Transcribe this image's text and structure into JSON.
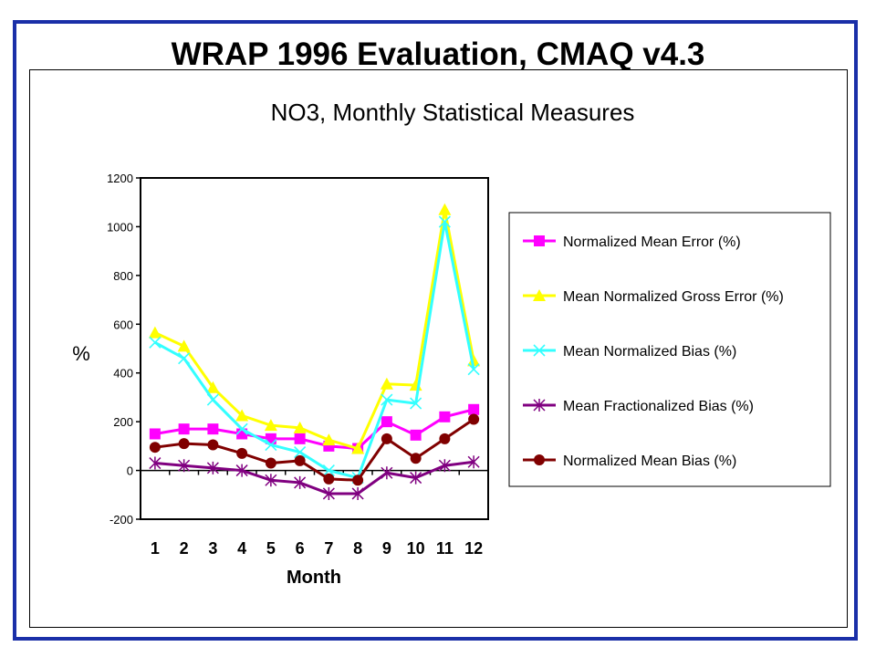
{
  "slide": {
    "title": "WRAP 1996 Evaluation, CMAQ v4.3"
  },
  "chart_data": {
    "type": "line",
    "title": "NO3, Monthly Statistical Measures",
    "xlabel": "Month",
    "ylabel": "%",
    "categories": [
      "1",
      "2",
      "3",
      "4",
      "5",
      "6",
      "7",
      "8",
      "9",
      "10",
      "11",
      "12"
    ],
    "ylim": [
      -200,
      1200
    ],
    "yticks": [
      -200,
      0,
      200,
      400,
      600,
      800,
      1000,
      1200
    ],
    "grid": false,
    "legend": "right",
    "series": [
      {
        "name": "Normalized Mean Error (%)",
        "color": "#ff00ff",
        "marker": "square",
        "values": [
          150,
          170,
          170,
          150,
          130,
          130,
          100,
          90,
          200,
          145,
          220,
          250
        ]
      },
      {
        "name": "Mean Normalized Gross Error (%)",
        "color": "#ffff00",
        "marker": "triangle",
        "values": [
          565,
          510,
          340,
          225,
          185,
          175,
          125,
          90,
          355,
          350,
          1070,
          450
        ]
      },
      {
        "name": "Mean Normalized Bias (%)",
        "color": "#33ffff",
        "marker": "x",
        "values": [
          525,
          460,
          290,
          170,
          105,
          75,
          0,
          -30,
          290,
          275,
          1020,
          415
        ]
      },
      {
        "name": "Mean Fractionalized Bias (%)",
        "color": "#800080",
        "marker": "star",
        "values": [
          30,
          20,
          10,
          0,
          -40,
          -50,
          -95,
          -95,
          -10,
          -30,
          20,
          35
        ]
      },
      {
        "name": "Normalized Mean Bias (%)",
        "color": "#800000",
        "marker": "circle",
        "values": [
          95,
          110,
          105,
          70,
          30,
          40,
          -35,
          -40,
          130,
          50,
          130,
          210
        ]
      }
    ]
  }
}
